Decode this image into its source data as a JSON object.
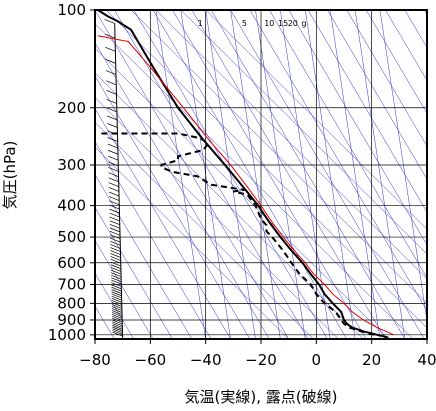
{
  "chart_data": {
    "type": "skew-t",
    "title": "",
    "xlabel": "気温(実線), 露点(破線)",
    "ylabel": "気圧(hPa)",
    "xlim": [
      -80,
      40
    ],
    "ylim": [
      1030,
      100
    ],
    "y_scale": "log",
    "x_ticks": [
      -80,
      -60,
      -40,
      -20,
      0,
      20,
      40
    ],
    "x_tick_labels": [
      "−80",
      "−60",
      "−40",
      "−20",
      "0",
      "20",
      "40"
    ],
    "y_ticks": [
      100,
      200,
      300,
      400,
      500,
      600,
      700,
      800,
      900,
      1000
    ],
    "y_tick_labels": [
      "100",
      "200",
      "300",
      "400",
      "500",
      "600",
      "700",
      "800",
      "900",
      "1000"
    ],
    "grid": true,
    "mixing_ratio_labels": [
      {
        "text": "1",
        "t_at_top": -42
      },
      {
        "text": "5",
        "t_at_top": -26
      },
      {
        "text": "10",
        "t_at_top": -17
      },
      {
        "text": "15",
        "t_at_top": -12
      },
      {
        "text": "20",
        "t_at_top": -8.5
      },
      {
        "text": "g",
        "t_at_top": -4.5
      }
    ],
    "colors": {
      "temperature": "#000000",
      "dewpoint": "#000000",
      "reference": "#e00000",
      "guide_lines": "#3333cc",
      "grid": "#000000"
    },
    "series": [
      {
        "key": "temperature",
        "style": "solid",
        "points": [
          [
            1020,
            26
          ],
          [
            1000,
            22
          ],
          [
            975,
            17
          ],
          [
            950,
            13
          ],
          [
            925,
            11
          ],
          [
            900,
            10
          ],
          [
            850,
            9
          ],
          [
            800,
            6
          ],
          [
            750,
            3
          ],
          [
            700,
            1
          ],
          [
            650,
            -2
          ],
          [
            600,
            -5
          ],
          [
            550,
            -9
          ],
          [
            500,
            -13
          ],
          [
            450,
            -17
          ],
          [
            400,
            -21
          ],
          [
            350,
            -26.5
          ],
          [
            300,
            -33
          ],
          [
            250,
            -41
          ],
          [
            200,
            -50
          ],
          [
            150,
            -59
          ],
          [
            115,
            -67
          ],
          [
            108,
            -72
          ],
          [
            105,
            -75
          ],
          [
            100,
            -79
          ]
        ]
      },
      {
        "key": "dewpoint",
        "style": "dashed",
        "points": [
          [
            1000,
            21
          ],
          [
            975,
            16
          ],
          [
            950,
            12
          ],
          [
            925,
            10
          ],
          [
            900,
            9
          ],
          [
            850,
            7
          ],
          [
            800,
            3
          ],
          [
            750,
            0
          ],
          [
            700,
            -2
          ],
          [
            650,
            -6
          ],
          [
            600,
            -9
          ],
          [
            550,
            -12
          ],
          [
            500,
            -16
          ],
          [
            480,
            -18
          ],
          [
            460,
            -18
          ],
          [
            440,
            -20
          ],
          [
            400,
            -22
          ],
          [
            370,
            -25
          ],
          [
            362,
            -30
          ],
          [
            358,
            -26
          ],
          [
            345,
            -38
          ],
          [
            325,
            -43
          ],
          [
            315,
            -52
          ],
          [
            305,
            -56
          ],
          [
            300,
            -56
          ],
          [
            290,
            -50
          ],
          [
            282,
            -50
          ],
          [
            270,
            -41
          ],
          [
            258,
            -39
          ],
          [
            248,
            -42
          ],
          [
            240,
            -50
          ],
          [
            240,
            -79
          ]
        ]
      },
      {
        "key": "reference",
        "style": "solid",
        "points": [
          [
            1000,
            28
          ],
          [
            950,
            22
          ],
          [
            900,
            17
          ],
          [
            850,
            13
          ],
          [
            800,
            10
          ],
          [
            750,
            6
          ],
          [
            700,
            3
          ],
          [
            650,
            -1
          ],
          [
            600,
            -4
          ],
          [
            550,
            -8
          ],
          [
            500,
            -12
          ],
          [
            450,
            -16
          ],
          [
            400,
            -20
          ],
          [
            350,
            -25
          ],
          [
            300,
            -31
          ],
          [
            250,
            -39
          ],
          [
            200,
            -48
          ],
          [
            150,
            -60
          ],
          [
            125,
            -68
          ],
          [
            120,
            -79
          ]
        ]
      }
    ],
    "wind_barbs_at_t": -70
  }
}
